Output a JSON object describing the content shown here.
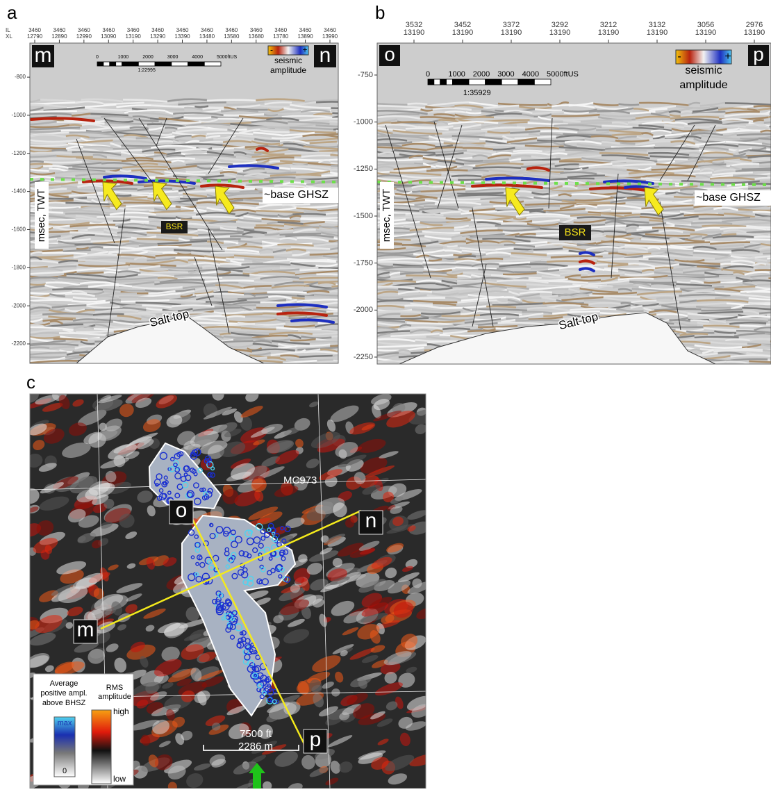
{
  "panels": [
    {
      "label": "a",
      "header": {
        "row_labels": [
          "IL",
          "XL"
        ],
        "il": [
          3460,
          3460,
          3460,
          3460,
          3460,
          3460,
          3460,
          3460,
          3460,
          3460,
          3460,
          3460,
          3460
        ],
        "xl": [
          12790,
          12890,
          12990,
          13090,
          13190,
          13290,
          13390,
          13480,
          13580,
          13680,
          13780,
          13890,
          13990
        ]
      },
      "corners": [
        "m",
        "n"
      ],
      "scale_bar": {
        "ticks": [
          "0",
          "1000",
          "2000",
          "3000",
          "4000",
          "5000ftUS"
        ],
        "ratio": "1:22995"
      },
      "legend": {
        "minus": "-",
        "plus": "+",
        "title": [
          "seismic",
          "amplitude"
        ]
      },
      "y_axis": {
        "label": "msec, TWT",
        "ylim": [
          -621,
          -2302
        ],
        "yticks": [
          -800,
          -1000,
          -1200,
          -1400,
          -1600,
          -1800,
          -2000,
          -2200
        ]
      },
      "annotations": {
        "horizon": "~base GHSZ",
        "bsr": "BSR",
        "salt": "Salt top"
      }
    },
    {
      "label": "b",
      "header": {
        "il": [
          3532,
          3452,
          3372,
          3292,
          3212,
          3132,
          3056,
          2976
        ],
        "xl": [
          13190,
          13190,
          13190,
          13190,
          13190,
          13190,
          13190,
          13190
        ]
      },
      "corners": [
        "o",
        "p"
      ],
      "scale_bar": {
        "ticks": [
          "0",
          "1000",
          "2000",
          "3000",
          "4000",
          "5000ftUS"
        ],
        "ratio": "1:35929"
      },
      "legend": {
        "minus": "-",
        "plus": "+",
        "title": [
          "seismic",
          "amplitude"
        ]
      },
      "y_axis": {
        "label": "msec, TWT",
        "ylim": [
          -580,
          -2287
        ],
        "yticks": [
          -750,
          -1000,
          -1250,
          -1500,
          -1750,
          -2000,
          -2250
        ]
      },
      "annotations": {
        "horizon": "~base GHSZ",
        "bsr": "BSR",
        "salt": "Salt top"
      }
    }
  ],
  "map": {
    "label": "c",
    "block": "MC973",
    "points": [
      "o",
      "n",
      "m",
      "p"
    ],
    "legend": {
      "left_title": [
        "Average",
        "positive ampl.",
        "above BHSZ"
      ],
      "left_max": "max",
      "left_min": "0",
      "right_title": [
        "RMS",
        "amplitude"
      ],
      "right_high": "high",
      "right_low": "low"
    },
    "scale": [
      "7500 ft",
      "2286 m"
    ]
  }
}
